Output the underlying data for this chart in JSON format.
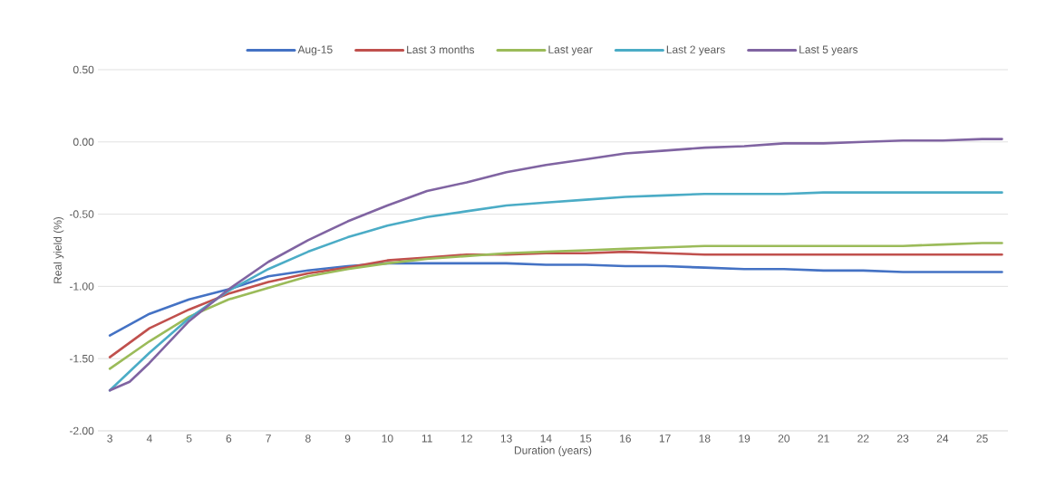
{
  "chart_data": {
    "type": "line",
    "xlabel": "Duration (years)",
    "ylabel": "Real yield (%)",
    "x": [
      3,
      4,
      5,
      6,
      7,
      8,
      9,
      10,
      11,
      12,
      13,
      14,
      15,
      16,
      17,
      18,
      19,
      20,
      21,
      22,
      23,
      24,
      25,
      25.5
    ],
    "xlim": [
      2.7,
      25.65
    ],
    "xticks": [
      3,
      4,
      5,
      6,
      7,
      8,
      9,
      10,
      11,
      12,
      13,
      14,
      15,
      16,
      17,
      18,
      19,
      20,
      21,
      22,
      23,
      24,
      25
    ],
    "ylim": [
      -2,
      0.5
    ],
    "yticks": [
      {
        "value": -2,
        "label": "-2.00"
      },
      {
        "value": -1.5,
        "label": "-1.50"
      },
      {
        "value": -1,
        "label": "-1.00"
      },
      {
        "value": -0.5,
        "label": "-0.50"
      },
      {
        "value": 0,
        "label": "0.00"
      },
      {
        "value": 0.5,
        "label": "0.50"
      }
    ],
    "grid": "y",
    "legend": "top",
    "marker": "none",
    "line_style": "solid",
    "series": [
      {
        "name": "Aug-15",
        "color": "#4472c4",
        "values": [
          -1.34,
          -1.19,
          -1.09,
          -1.02,
          -0.93,
          -0.89,
          -0.86,
          -0.84,
          -0.84,
          -0.84,
          -0.84,
          -0.85,
          -0.85,
          -0.86,
          -0.86,
          -0.87,
          -0.88,
          -0.88,
          -0.89,
          -0.89,
          -0.9,
          -0.9,
          -0.9,
          -0.9
        ]
      },
      {
        "name": "Last 3 months",
        "color": "#c0504d",
        "values": [
          -1.49,
          -1.29,
          -1.16,
          -1.05,
          -0.97,
          -0.91,
          -0.87,
          -0.82,
          -0.8,
          -0.78,
          -0.78,
          -0.77,
          -0.77,
          -0.76,
          -0.77,
          -0.78,
          -0.78,
          -0.78,
          -0.78,
          -0.78,
          -0.78,
          -0.78,
          -0.78,
          -0.78
        ]
      },
      {
        "name": "Last year",
        "color": "#9bbb59",
        "values": [
          -1.57,
          -1.38,
          -1.21,
          -1.09,
          -1.01,
          -0.93,
          -0.88,
          -0.84,
          -0.81,
          -0.79,
          -0.77,
          -0.76,
          -0.75,
          -0.74,
          -0.73,
          -0.72,
          -0.72,
          -0.72,
          -0.72,
          -0.72,
          -0.72,
          -0.71,
          -0.7,
          -0.7
        ]
      },
      {
        "name": "Last 2 years",
        "color": "#4bacc6",
        "values": [
          -1.72,
          -1.46,
          -1.22,
          -1.03,
          -0.88,
          -0.76,
          -0.66,
          -0.58,
          -0.52,
          -0.48,
          -0.44,
          -0.42,
          -0.4,
          -0.38,
          -0.37,
          -0.36,
          -0.36,
          -0.36,
          -0.35,
          -0.35,
          -0.35,
          -0.35,
          -0.35,
          -0.35
        ]
      },
      {
        "name": "Last 5 years",
        "color": "#8064a2",
        "x": [
          3,
          3.5,
          4,
          5,
          6,
          7,
          8,
          9,
          10,
          11,
          12,
          13,
          14,
          15,
          16,
          17,
          18,
          19,
          20,
          21,
          22,
          23,
          24,
          25,
          25.5
        ],
        "values": [
          -1.72,
          -1.66,
          -1.53,
          -1.24,
          -1.02,
          -0.83,
          -0.68,
          -0.55,
          -0.44,
          -0.34,
          -0.28,
          -0.21,
          -0.16,
          -0.12,
          -0.08,
          -0.06,
          -0.04,
          -0.03,
          -0.01,
          -0.01,
          0.0,
          0.01,
          0.01,
          0.02,
          0.02
        ]
      }
    ]
  }
}
